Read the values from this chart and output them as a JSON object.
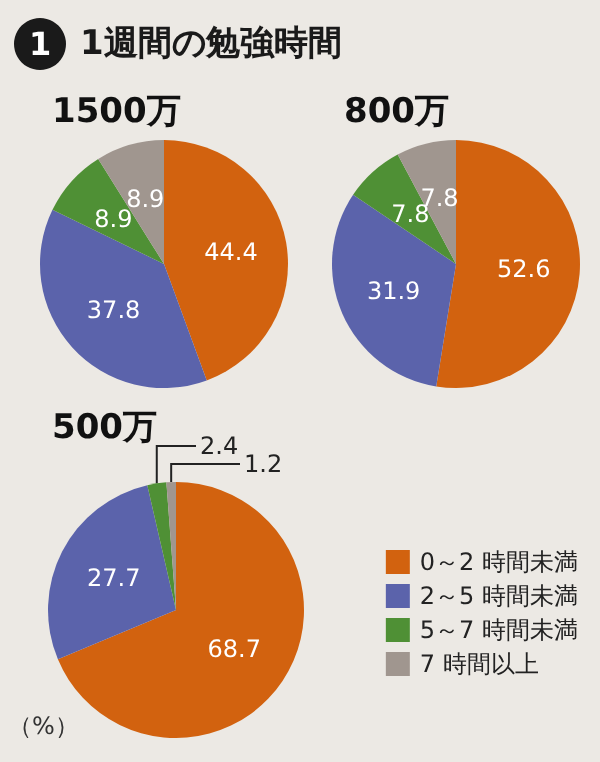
{
  "chart_data": [
    {
      "type": "pie",
      "title": "1週間の勉強時間",
      "subtitle": "1500万",
      "annotations": [
        "1"
      ],
      "values": [
        44.4,
        37.8,
        8.9,
        8.9
      ],
      "colors": [
        "#d2620f",
        "#5b63ab",
        "#4f9035",
        "#a0968f"
      ],
      "data_labels": true,
      "legend": false
    },
    {
      "type": "pie",
      "subtitle": "800万",
      "values": [
        52.6,
        31.9,
        7.8,
        7.8
      ],
      "colors": [
        "#d2620f",
        "#5b63ab",
        "#4f9035",
        "#a0968f"
      ],
      "data_labels": true,
      "legend": false
    },
    {
      "type": "pie",
      "subtitle": "500万",
      "annotations": [
        "（%）"
      ],
      "categories": [
        "0～2 時間未満",
        "2～5 時間未満",
        "5～7 時間未満",
        "7 時間以上"
      ],
      "values": [
        68.7,
        27.7,
        2.4,
        1.2
      ],
      "colors": [
        "#d2620f",
        "#5b63ab",
        "#4f9035",
        "#a0968f"
      ],
      "data_labels": true,
      "legend": "right"
    }
  ]
}
